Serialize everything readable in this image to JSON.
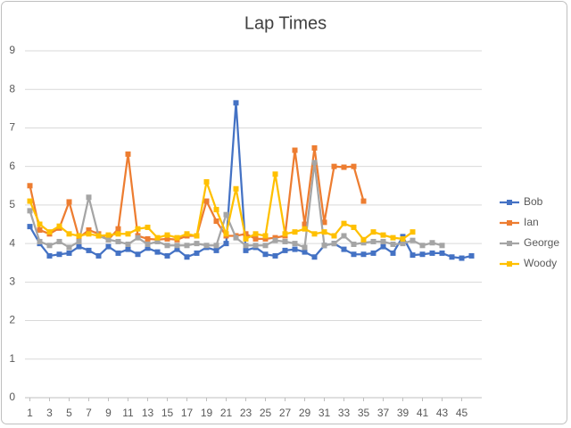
{
  "chart_data": {
    "type": "line",
    "title": "Lap Times",
    "x": [
      1,
      2,
      3,
      4,
      5,
      6,
      7,
      8,
      9,
      10,
      11,
      12,
      13,
      14,
      15,
      16,
      17,
      18,
      19,
      20,
      21,
      22,
      23,
      24,
      25,
      26,
      27,
      28,
      29,
      30,
      31,
      32,
      33,
      34,
      35,
      36,
      37,
      38,
      39,
      40,
      41,
      42,
      43,
      44,
      45,
      46
    ],
    "xlim": [
      0.5,
      46.5
    ],
    "xticks": [
      1,
      3,
      5,
      7,
      9,
      11,
      13,
      15,
      17,
      19,
      21,
      23,
      25,
      27,
      29,
      31,
      33,
      35,
      37,
      39,
      41,
      43,
      45
    ],
    "ylim": [
      0,
      9
    ],
    "yticks": [
      0,
      1,
      2,
      3,
      4,
      5,
      6,
      7,
      8,
      9
    ],
    "grid": true,
    "legend": "right",
    "series": [
      {
        "name": "Bob",
        "color": "#4472c4",
        "values": [
          4.44,
          4.0,
          3.68,
          3.72,
          3.75,
          3.92,
          3.82,
          3.68,
          3.92,
          3.75,
          3.85,
          3.72,
          3.88,
          3.78,
          3.68,
          3.85,
          3.65,
          3.75,
          3.9,
          3.82,
          4.0,
          7.65,
          3.82,
          3.9,
          3.72,
          3.68,
          3.82,
          3.85,
          3.78,
          3.65,
          3.95,
          4.0,
          3.85,
          3.72,
          3.72,
          3.75,
          3.92,
          3.75,
          4.18,
          3.7,
          3.72,
          3.75,
          3.75,
          3.65,
          3.62,
          3.68
        ]
      },
      {
        "name": "Ian",
        "color": "#ed7d31",
        "values": [
          5.5,
          4.35,
          4.25,
          4.4,
          5.08,
          4.15,
          4.35,
          4.25,
          4.1,
          4.38,
          6.32,
          4.2,
          4.12,
          4.1,
          4.12,
          4.1,
          4.2,
          4.2,
          5.1,
          4.58,
          4.2,
          4.2,
          4.25,
          4.12,
          4.12,
          4.15,
          4.2,
          6.42,
          4.5,
          6.48,
          4.55,
          6.0,
          5.98,
          6.0,
          5.1,
          null,
          null,
          null,
          null,
          null,
          null,
          null,
          null,
          null,
          null,
          null
        ]
      },
      {
        "name": "George",
        "color": "#a5a5a5",
        "values": [
          4.85,
          4.05,
          3.95,
          4.05,
          3.9,
          4.05,
          5.2,
          4.2,
          4.1,
          4.05,
          3.98,
          4.15,
          3.98,
          4.05,
          3.95,
          3.95,
          3.95,
          4.0,
          3.95,
          3.95,
          4.75,
          4.15,
          3.95,
          3.95,
          3.95,
          4.08,
          4.05,
          4.0,
          3.9,
          6.1,
          3.95,
          4.0,
          4.2,
          3.98,
          4.02,
          4.05,
          4.05,
          3.98,
          4.0,
          4.08,
          3.95,
          4.02,
          3.95,
          null,
          null,
          null
        ]
      },
      {
        "name": "Woody",
        "color": "#ffc000",
        "values": [
          5.1,
          4.5,
          4.3,
          4.45,
          4.25,
          4.2,
          4.25,
          4.2,
          4.22,
          4.25,
          4.25,
          4.38,
          4.42,
          4.15,
          4.22,
          4.15,
          4.25,
          4.2,
          5.6,
          4.88,
          4.25,
          5.42,
          4.12,
          4.25,
          4.2,
          5.8,
          4.25,
          4.3,
          4.38,
          4.25,
          4.3,
          4.2,
          4.52,
          4.42,
          4.1,
          4.3,
          4.22,
          4.15,
          4.12,
          4.3,
          null,
          null,
          null,
          null,
          null,
          null
        ]
      }
    ]
  }
}
